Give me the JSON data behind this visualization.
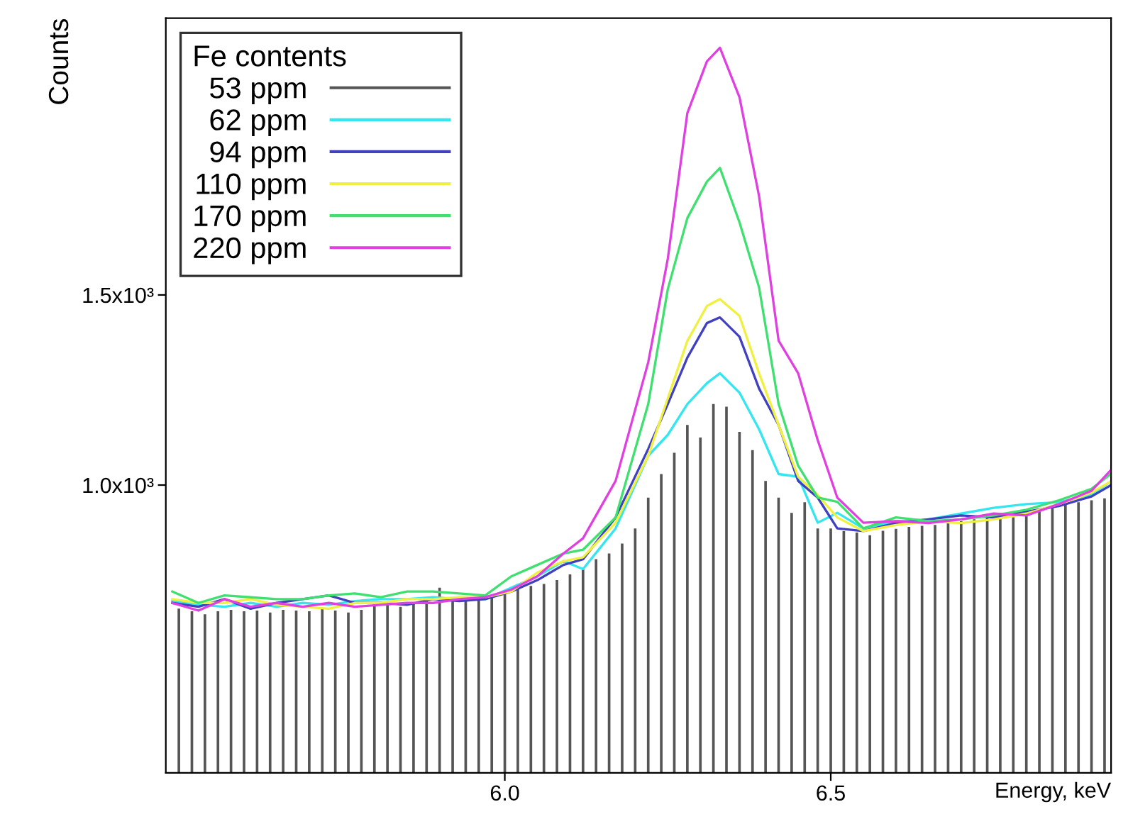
{
  "chart_data": {
    "type": "line",
    "xlabel": "Energy, keV",
    "ylabel": "Counts",
    "legend_title": "Fe contents",
    "legend": "top left",
    "grid": false,
    "marker": "none",
    "line_style": "solid",
    "xlim": [
      5.48,
      6.93
    ],
    "ylim": [
      243,
      2228
    ],
    "xticks": [
      {
        "value": 6.0,
        "label": "6.0"
      },
      {
        "value": 6.5,
        "label": "6.5"
      }
    ],
    "yticks": [
      {
        "value": 1000,
        "label": "1.0x10³"
      },
      {
        "value": 1500,
        "label": "1.5x10³"
      }
    ],
    "x": [
      5.49,
      5.53,
      5.57,
      5.61,
      5.65,
      5.69,
      5.73,
      5.77,
      5.81,
      5.85,
      5.89,
      5.93,
      5.97,
      6.01,
      6.05,
      6.09,
      6.12,
      6.17,
      6.22,
      6.25,
      6.28,
      6.31,
      6.33,
      6.36,
      6.39,
      6.42,
      6.45,
      6.48,
      6.51,
      6.55,
      6.6,
      6.65,
      6.7,
      6.75,
      6.8,
      6.85,
      6.9,
      6.93
    ],
    "series": [
      {
        "name": "53 ppm",
        "type": "bar",
        "color": "#555555",
        "x": [
          5.5,
          5.52,
          5.54,
          5.56,
          5.58,
          5.6,
          5.62,
          5.64,
          5.66,
          5.68,
          5.7,
          5.72,
          5.74,
          5.76,
          5.78,
          5.8,
          5.82,
          5.84,
          5.86,
          5.88,
          5.9,
          5.92,
          5.94,
          5.96,
          5.98,
          6.0,
          6.02,
          6.04,
          6.06,
          6.08,
          6.1,
          6.12,
          6.14,
          6.16,
          6.18,
          6.2,
          6.22,
          6.24,
          6.26,
          6.28,
          6.3,
          6.32,
          6.34,
          6.36,
          6.38,
          6.4,
          6.42,
          6.44,
          6.46,
          6.48,
          6.5,
          6.52,
          6.54,
          6.56,
          6.58,
          6.6,
          6.62,
          6.64,
          6.66,
          6.68,
          6.7,
          6.72,
          6.74,
          6.76,
          6.78,
          6.8,
          6.82,
          6.84,
          6.86,
          6.88,
          6.9,
          6.92
        ],
        "values": [
          675,
          668,
          660,
          668,
          672,
          668,
          670,
          665,
          672,
          670,
          668,
          675,
          670,
          665,
          672,
          690,
          685,
          680,
          688,
          700,
          730,
          700,
          705,
          700,
          710,
          720,
          740,
          735,
          740,
          750,
          765,
          779,
          805,
          820,
          846,
          886,
          967,
          1029,
          1085,
          1158,
          1125,
          1213,
          1206,
          1140,
          1092,
          1011,
          967,
          927,
          955,
          886,
          886,
          879,
          875,
          868,
          880,
          885,
          890,
          893,
          895,
          900,
          905,
          910,
          915,
          920,
          915,
          925,
          930,
          940,
          950,
          955,
          960,
          965
        ]
      },
      {
        "name": "62 ppm",
        "color": "#33e6f0",
        "values": [
          695,
          685,
          680,
          690,
          680,
          690,
          685,
          695,
          700,
          700,
          705,
          700,
          700,
          730,
          760,
          800,
          779,
          886,
          1077,
          1132,
          1213,
          1268,
          1294,
          1243,
          1147,
          1029,
          1022,
          901,
          927,
          886,
          905,
          910,
          925,
          940,
          950,
          955,
          975,
          1010
        ]
      },
      {
        "name": "94 ppm",
        "color": "#4040c0",
        "values": [
          690,
          680,
          700,
          675,
          690,
          700,
          710,
          690,
          690,
          685,
          700,
          695,
          700,
          720,
          750,
          790,
          805,
          915,
          1095,
          1213,
          1335,
          1426,
          1441,
          1390,
          1254,
          1158,
          1011,
          967,
          886,
          879,
          900,
          910,
          920,
          915,
          930,
          945,
          970,
          1000
        ]
      },
      {
        "name": "110 ppm",
        "color": "#f0f040",
        "values": [
          700,
          690,
          690,
          700,
          685,
          680,
          675,
          690,
          690,
          700,
          700,
          705,
          705,
          720,
          770,
          800,
          810,
          901,
          1077,
          1228,
          1379,
          1471,
          1489,
          1445,
          1294,
          1158,
          1022,
          974,
          915,
          879,
          895,
          905,
          900,
          910,
          925,
          950,
          980,
          1010
        ]
      },
      {
        "name": "170 ppm",
        "color": "#40e070",
        "values": [
          720,
          690,
          710,
          705,
          700,
          700,
          710,
          715,
          705,
          720,
          720,
          715,
          710,
          760,
          790,
          820,
          830,
          915,
          1213,
          1515,
          1702,
          1798,
          1834,
          1691,
          1520,
          1213,
          1051,
          967,
          956,
          886,
          915,
          905,
          910,
          920,
          935,
          960,
          990,
          1030
        ]
      },
      {
        "name": "220 ppm",
        "color": "#e040e0",
        "values": [
          690,
          670,
          700,
          680,
          690,
          680,
          690,
          680,
          685,
          690,
          690,
          700,
          705,
          725,
          760,
          820,
          860,
          1011,
          1323,
          1595,
          1978,
          2114,
          2150,
          2020,
          1760,
          1380,
          1294,
          1118,
          967,
          901,
          905,
          900,
          910,
          925,
          920,
          950,
          985,
          1040
        ]
      }
    ]
  }
}
